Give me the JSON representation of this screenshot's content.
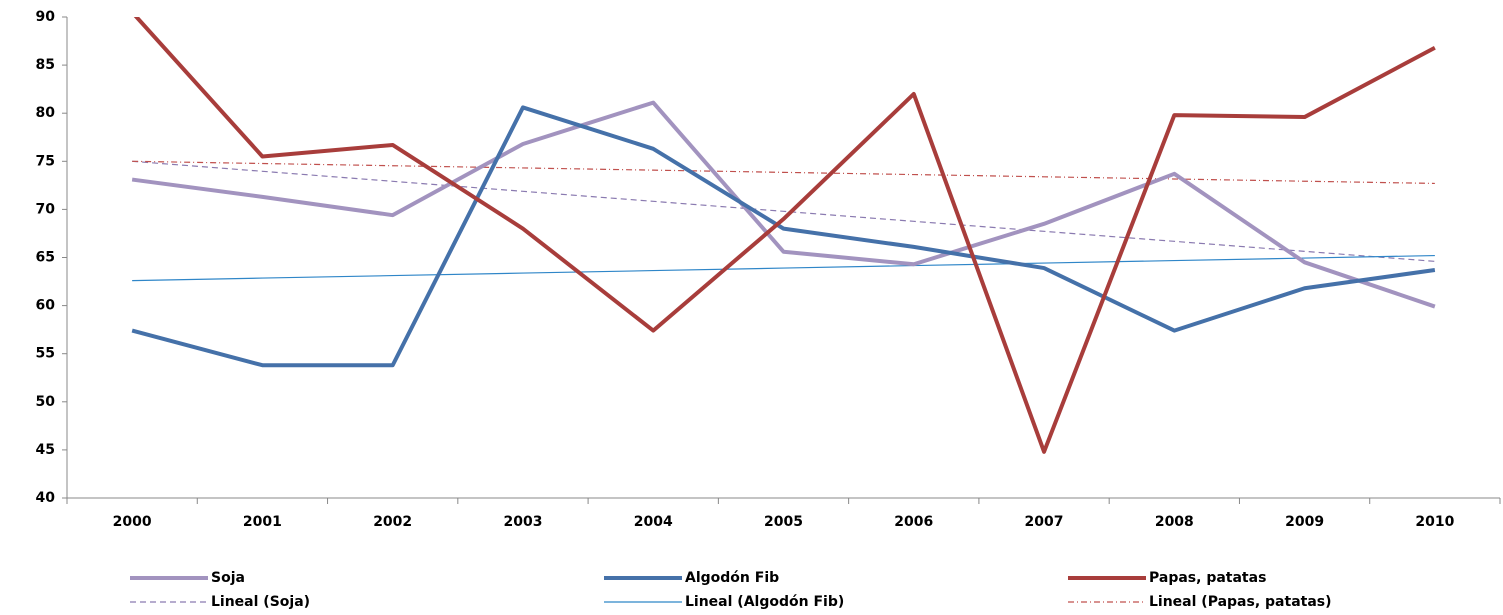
{
  "chart_data": {
    "type": "line",
    "categories": [
      "2000",
      "2001",
      "2002",
      "2003",
      "2004",
      "2005",
      "2006",
      "2007",
      "2008",
      "2009",
      "2010"
    ],
    "ylim": [
      40,
      90
    ],
    "yticks": [
      40,
      45,
      50,
      55,
      60,
      65,
      70,
      75,
      80,
      85,
      90
    ],
    "series": [
      {
        "name": "Soja",
        "color": "#a293bf",
        "line_style": "solid",
        "values": [
          73.1,
          71.3,
          69.4,
          76.8,
          81.1,
          65.6,
          64.3,
          68.5,
          73.7,
          64.5,
          59.9
        ]
      },
      {
        "name": "Algodón Fib",
        "color": "#4571a9",
        "line_style": "solid",
        "values": [
          57.4,
          53.8,
          53.8,
          80.6,
          76.3,
          68.0,
          66.1,
          63.9,
          57.4,
          61.8,
          63.7
        ]
      },
      {
        "name": "Papas, patatas",
        "color": "#a83d3b",
        "line_style": "solid",
        "values": [
          90.5,
          75.5,
          76.7,
          68.0,
          57.4,
          69.0,
          82.0,
          44.8,
          79.8,
          79.6,
          86.8
        ]
      },
      {
        "name": "Lineal (Soja)",
        "color": "#8a7ab0",
        "line_style": "dashed",
        "values": [
          75,
          73.96,
          72.92,
          71.88,
          70.84,
          69.8,
          68.76,
          67.72,
          66.68,
          65.64,
          64.6
        ]
      },
      {
        "name": "Lineal (Algodón Fib)",
        "color": "#2f86c8",
        "line_style": "thin",
        "values": [
          62.6,
          62.86,
          63.12,
          63.38,
          63.64,
          63.9,
          64.16,
          64.42,
          64.68,
          64.94,
          65.2
        ]
      },
      {
        "name": "Lineal (Papas, patatas)",
        "color": "#c0504d",
        "line_style": "dashdot",
        "values": [
          75,
          74.77,
          74.54,
          74.31,
          74.08,
          73.85,
          73.62,
          73.39,
          73.16,
          72.93,
          72.7
        ]
      }
    ]
  }
}
